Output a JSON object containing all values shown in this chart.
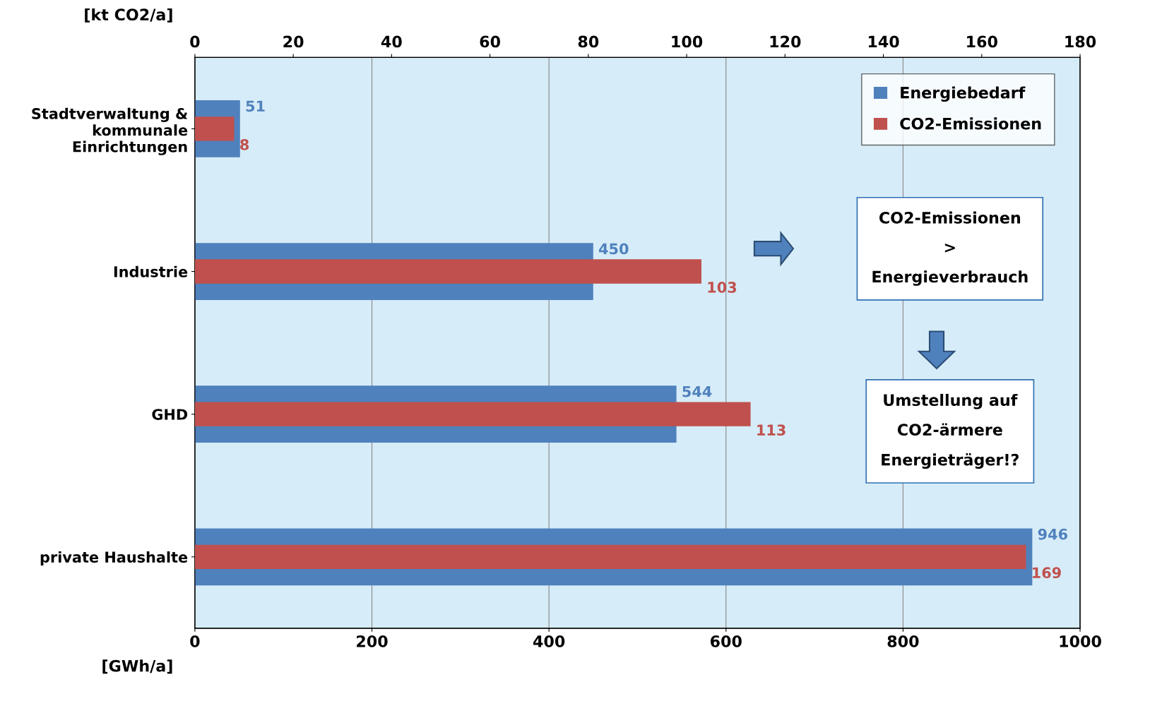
{
  "chart_data": {
    "type": "bar",
    "orientation": "horizontal",
    "categories": [
      "Stadtverwaltung &\nkommunale\nEinrichtungen",
      "Industrie",
      "GHD",
      "private Haushalte"
    ],
    "series": [
      {
        "name": "Energiebedarf",
        "color": "#4f81bd",
        "values": [
          51,
          450,
          544,
          946
        ]
      },
      {
        "name": "CO2-Emissionen",
        "color": "#c0504d",
        "values": [
          8,
          103,
          113,
          169
        ],
        "axis": "x2"
      }
    ],
    "xlabel": "[GWh/a]",
    "x2label": "[kt CO2/a]",
    "xlim": [
      0,
      1000
    ],
    "xticks": [
      0,
      200,
      400,
      600,
      800,
      1000
    ],
    "x2lim": [
      0,
      180
    ],
    "x2ticks": [
      0,
      20,
      40,
      60,
      80,
      100,
      120,
      140,
      160,
      180
    ],
    "grid": "x",
    "legend": "top right",
    "data_labels": true,
    "annotations": [
      "CO2-Emissionen\n>\nEnergieverbrauch",
      "Umstellung auf\nCO2-ärmere\nEnergieträger!?"
    ]
  }
}
